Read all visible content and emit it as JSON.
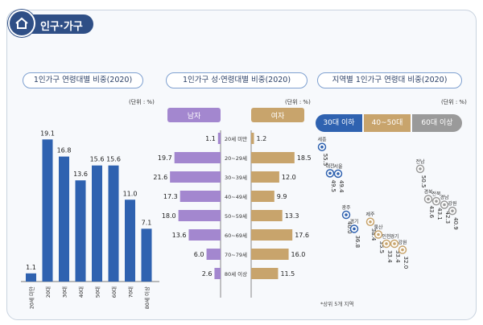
{
  "header": {
    "title": "인구·가구",
    "icon": "house-icon"
  },
  "panel1": {
    "title": "1인가구 연령대별 비중(2020)",
    "unit": "(단위 : %)",
    "color": "#2f62b0",
    "chart_data": {
      "type": "bar",
      "categories": [
        "20세 미만",
        "20대",
        "30대",
        "40대",
        "50대",
        "60대",
        "70대",
        "80세 이상"
      ],
      "values": [
        1.1,
        19.1,
        16.8,
        13.6,
        15.6,
        15.6,
        11.0,
        7.1
      ],
      "value_labels": [
        "1.1",
        "19.1",
        "16.8",
        "13.6",
        "15.6",
        "15.6",
        "11.0",
        "7.1"
      ],
      "ylim": [
        0,
        20
      ]
    }
  },
  "panel2": {
    "title": "1인가구 성·연령대별 비중(2020)",
    "unit": "(단위 : %)",
    "male_label": "남자",
    "female_label": "여자",
    "male_color": "#a387cf",
    "female_color": "#c8a46c",
    "chart_data": {
      "type": "bar",
      "categories": [
        "20세 미만",
        "20~29세",
        "30~39세",
        "40~49세",
        "50~59세",
        "60~69세",
        "70~79세",
        "80세 이상"
      ],
      "series": [
        {
          "name": "남자",
          "values": [
            1.1,
            19.7,
            21.6,
            17.3,
            18.0,
            13.6,
            6.0,
            2.6
          ],
          "value_labels": [
            "1.1",
            "19.7",
            "21.6",
            "17.3",
            "18.0",
            "13.6",
            "6.0",
            "2.6"
          ]
        },
        {
          "name": "여자",
          "values": [
            1.2,
            18.5,
            12.0,
            9.9,
            13.3,
            17.6,
            16.0,
            11.5
          ],
          "value_labels": [
            "1.2",
            "18.5",
            "12.0",
            "9.9",
            "13.3",
            "17.6",
            "16.0",
            "11.5"
          ]
        }
      ],
      "xlim": [
        0,
        22
      ]
    }
  },
  "panel3": {
    "title": "지역별 1인가구 연령대 비중(2020)",
    "unit": "(단위 : %)",
    "note": "*상위 5개 지역",
    "groups": [
      {
        "label": "30대 이하",
        "color": "#2f62b0"
      },
      {
        "label": "40~50대",
        "color": "#c8a46c"
      },
      {
        "label": "60대 이상",
        "color": "#9a9a9a"
      }
    ],
    "chart_data": {
      "type": "scatter",
      "groups": [
        {
          "name": "30대 이하",
          "points": [
            {
              "region": "세종",
              "value": 55.5,
              "label": "55.5"
            },
            {
              "region": "대전",
              "value": 49.5,
              "label": "49.5"
            },
            {
              "region": "서울",
              "value": 49.4,
              "label": "49.4"
            },
            {
              "region": "광주",
              "value": 40.0,
              "label": "40.0"
            },
            {
              "region": "경기",
              "value": 36.8,
              "label": "36.8"
            }
          ]
        },
        {
          "name": "40~50대",
          "points": [
            {
              "region": "제주",
              "value": 38.4,
              "label": "38.4"
            },
            {
              "region": "울산",
              "value": 35.5,
              "label": "35.5"
            },
            {
              "region": "인천",
              "value": 33.4,
              "label": "33.4"
            },
            {
              "region": "경기",
              "value": 33.4,
              "label": "33.4"
            },
            {
              "region": "강원",
              "value": 32.0,
              "label": "32.0"
            }
          ]
        },
        {
          "name": "60대 이상",
          "points": [
            {
              "region": "전남",
              "value": 50.5,
              "label": "50.5"
            },
            {
              "region": "경북",
              "value": 43.6,
              "label": "43.6"
            },
            {
              "region": "전북",
              "value": 43.1,
              "label": "43.1"
            },
            {
              "region": "경남",
              "value": 42.3,
              "label": "42.3"
            },
            {
              "region": "강원",
              "value": 40.9,
              "label": "40.9"
            }
          ]
        }
      ]
    }
  }
}
